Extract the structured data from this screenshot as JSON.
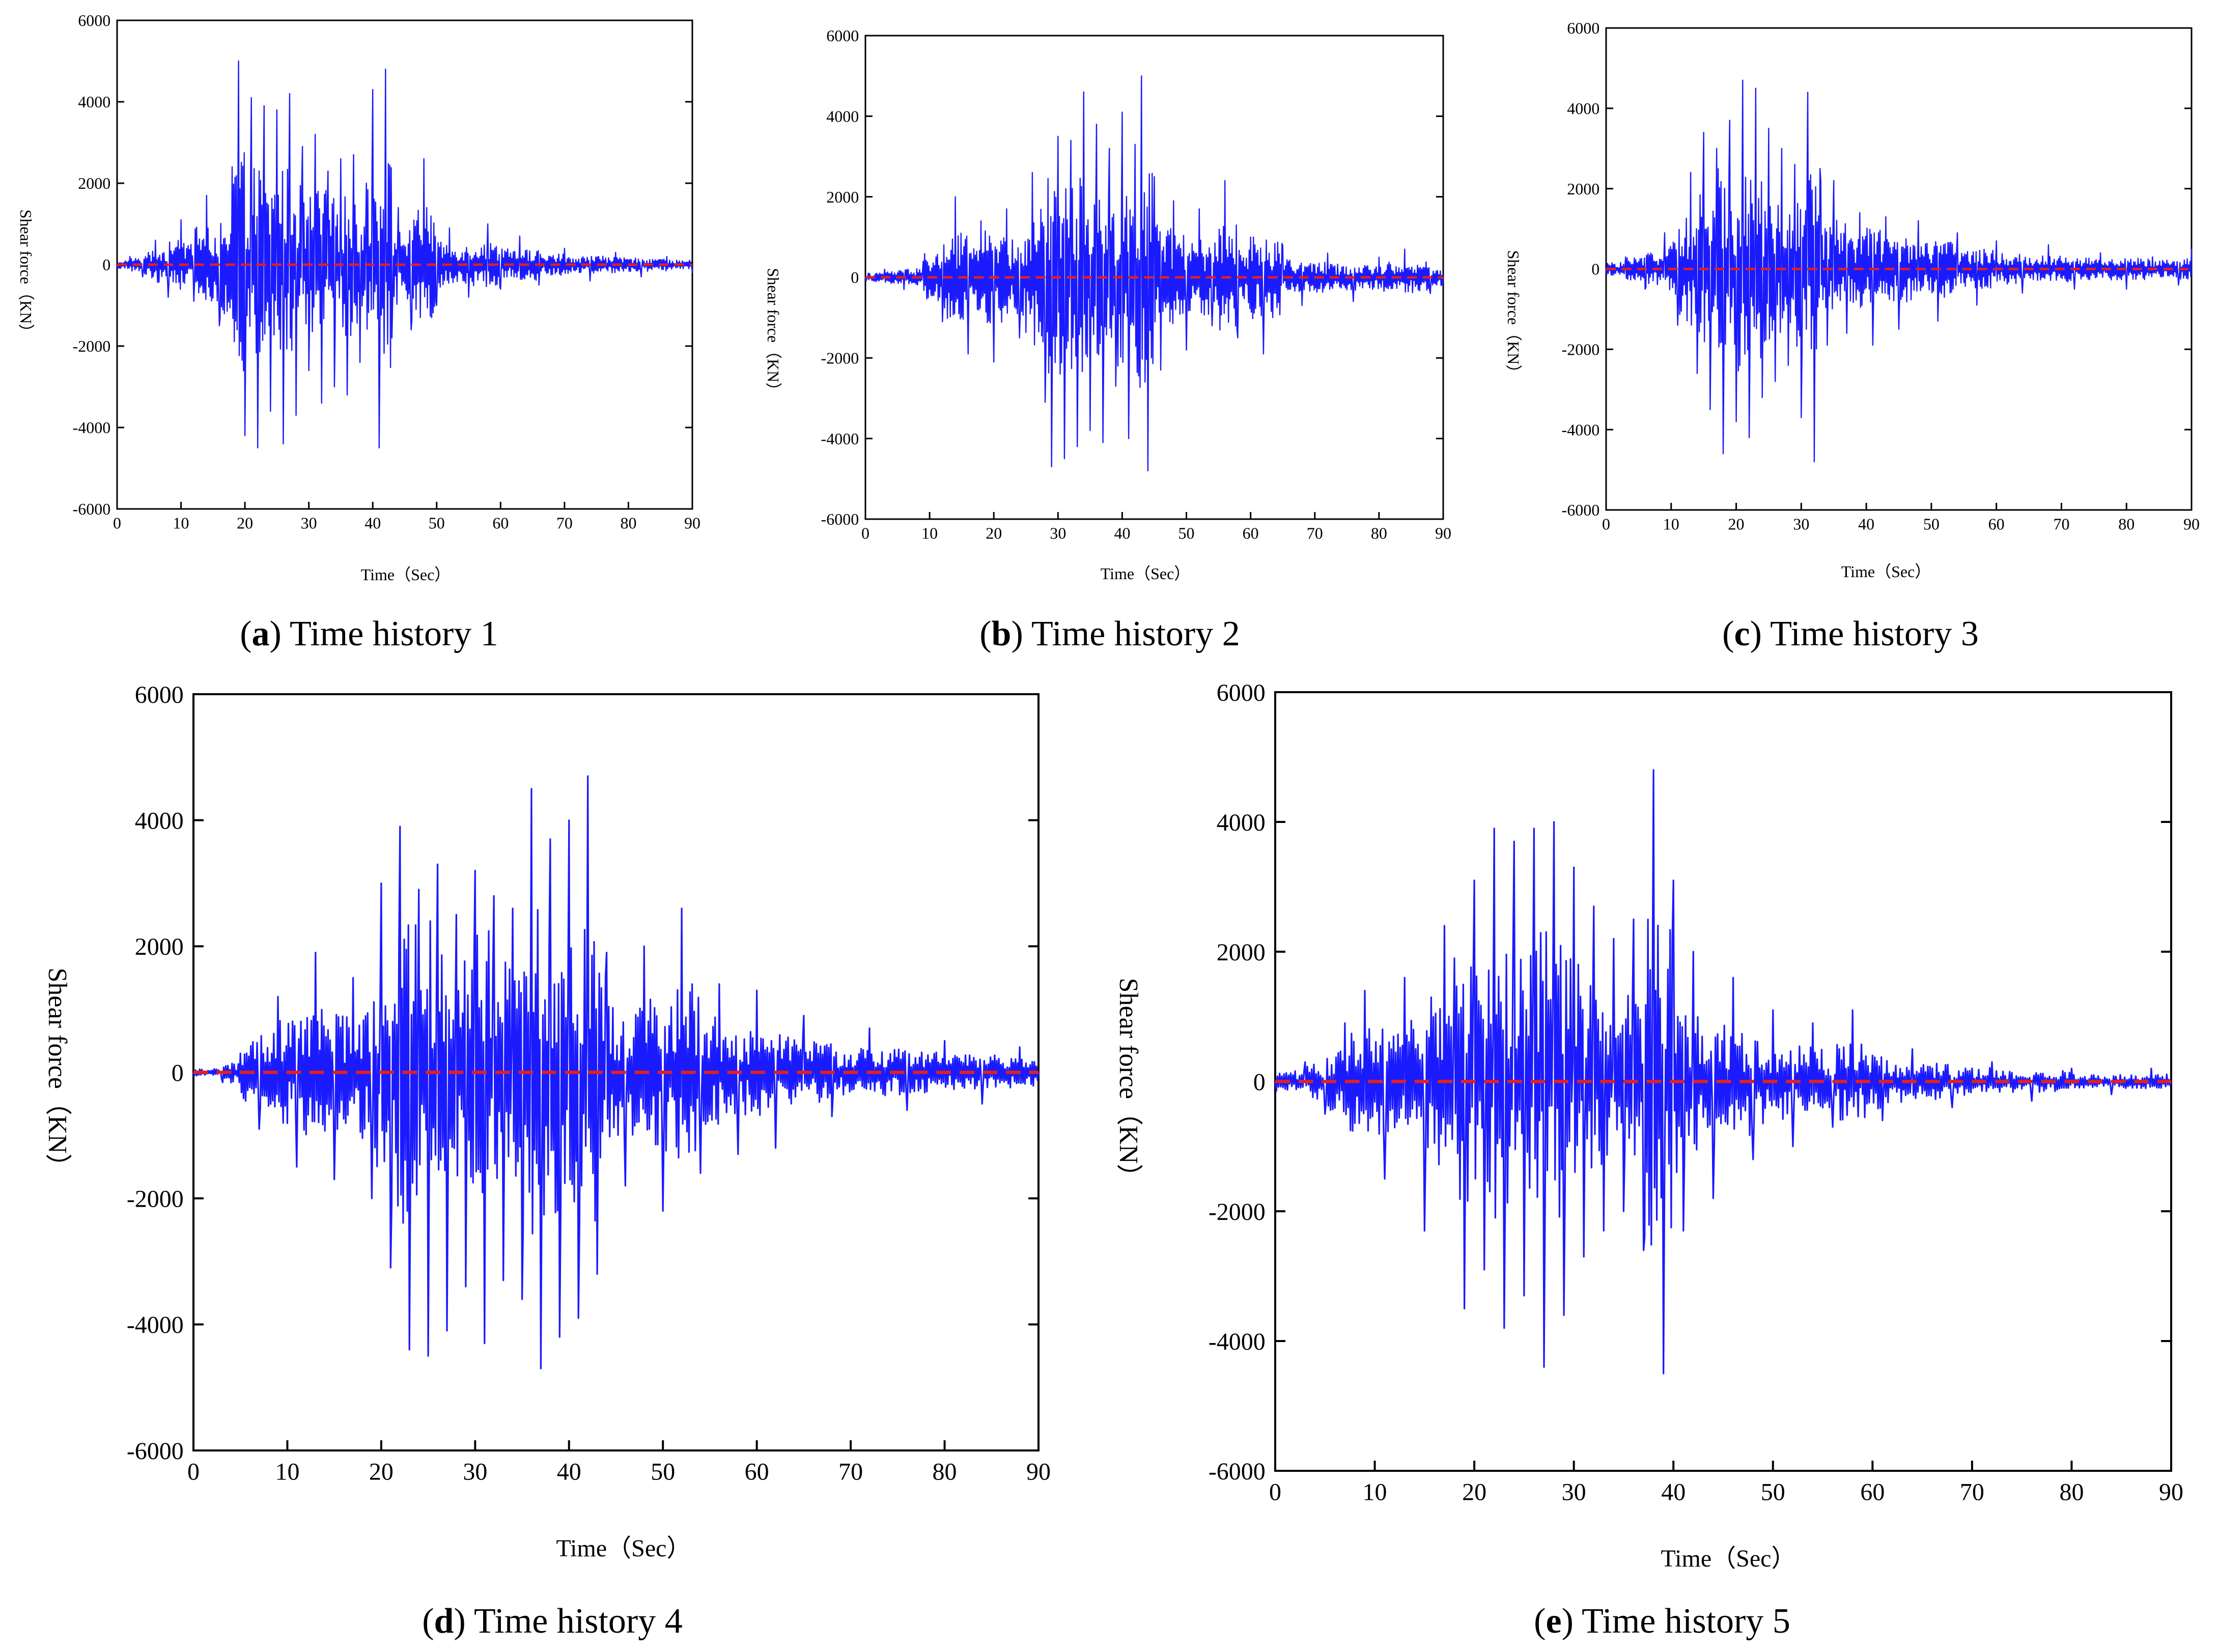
{
  "figure": {
    "panels": [
      {
        "id": "a",
        "caption_letter": "a",
        "caption_text": ") Time history 1"
      },
      {
        "id": "b",
        "caption_letter": "b",
        "caption_text": ") Time history 2"
      },
      {
        "id": "c",
        "caption_letter": "c",
        "caption_text": ") Time history 3"
      },
      {
        "id": "d",
        "caption_letter": "d",
        "caption_text": ") Time history 4"
      },
      {
        "id": "e",
        "caption_letter": "e",
        "caption_text": ") Time history 5"
      }
    ]
  },
  "colors": {
    "signal": "#1a1aff",
    "zero_line": "#e02020",
    "axis": "#000000"
  },
  "chart_data": [
    {
      "type": "line",
      "title": "(a) Time history 1",
      "xlabel": "Time（Sec）",
      "ylabel": "Shear force（KN）",
      "xlim": [
        0,
        90
      ],
      "ylim": [
        -6000,
        6000
      ],
      "xticks": [
        0,
        10,
        20,
        30,
        40,
        50,
        60,
        70,
        80,
        90
      ],
      "yticks": [
        -6000,
        -4000,
        -2000,
        0,
        2000,
        4000,
        6000
      ],
      "series": [
        {
          "name": "Shear force",
          "style": "solid",
          "x": [
            0,
            2,
            4,
            6,
            8,
            10,
            12,
            14,
            16,
            18,
            19,
            20,
            21,
            22,
            23,
            24,
            25,
            26,
            27,
            28,
            29,
            30,
            31,
            32,
            33,
            34,
            35,
            36,
            37,
            38,
            39,
            40,
            41,
            42,
            43,
            44,
            46,
            48,
            50,
            52,
            55,
            58,
            60,
            63,
            66,
            70,
            74,
            78,
            82,
            86,
            90
          ],
          "y": [
            0,
            200,
            -300,
            600,
            -800,
            1100,
            -900,
            1700,
            -1500,
            2400,
            5000,
            -4200,
            4100,
            -4500,
            3900,
            -3600,
            3800,
            -4400,
            4200,
            -3700,
            2900,
            -2600,
            3200,
            -3400,
            2300,
            -3000,
            2600,
            -3200,
            2700,
            -2400,
            2000,
            4300,
            -4500,
            4800,
            -1800,
            1400,
            -1600,
            2600,
            -1000,
            900,
            -800,
            1000,
            -600,
            700,
            -500,
            400,
            -400,
            300,
            -300,
            200,
            -200
          ]
        },
        {
          "name": "Zero line",
          "style": "dashed",
          "x": [
            0,
            90
          ],
          "y": [
            0,
            0
          ]
        }
      ]
    },
    {
      "type": "line",
      "title": "(b) Time history 2",
      "xlabel": "Time（Sec）",
      "ylabel": "Shear force（KN）",
      "xlim": [
        0,
        90
      ],
      "ylim": [
        -6000,
        6000
      ],
      "xticks": [
        0,
        10,
        20,
        30,
        40,
        50,
        60,
        70,
        80,
        90
      ],
      "yticks": [
        -6000,
        -4000,
        -2000,
        0,
        2000,
        4000,
        6000
      ],
      "series": [
        {
          "name": "Shear force",
          "style": "solid",
          "x": [
            0,
            3,
            6,
            9,
            12,
            14,
            16,
            18,
            20,
            22,
            24,
            26,
            28,
            29,
            30,
            31,
            32,
            33,
            34,
            35,
            36,
            37,
            38,
            39,
            40,
            41,
            42,
            43,
            44,
            45,
            46,
            48,
            50,
            52,
            54,
            56,
            58,
            60,
            62,
            65,
            68,
            72,
            76,
            80,
            84,
            88,
            90
          ],
          "y": [
            0,
            200,
            -300,
            400,
            -1100,
            2000,
            -1900,
            1400,
            -2100,
            1700,
            -1500,
            2600,
            -3100,
            -4700,
            3500,
            -4500,
            3400,
            -4200,
            4600,
            -3800,
            3800,
            -4100,
            3200,
            -2700,
            4100,
            -4000,
            3300,
            5000,
            -4800,
            2500,
            -2300,
            1900,
            -1800,
            1700,
            -1200,
            2400,
            -1500,
            1000,
            -1900,
            800,
            -700,
            600,
            -600,
            500,
            700,
            -400,
            0
          ]
        },
        {
          "name": "Zero line",
          "style": "dashed",
          "x": [
            0,
            90
          ],
          "y": [
            0,
            0
          ]
        }
      ]
    },
    {
      "type": "line",
      "title": "(c) Time history 3",
      "xlabel": "Time（Sec）",
      "ylabel": "Shear force（KN）",
      "xlim": [
        0,
        90
      ],
      "ylim": [
        -6000,
        6000
      ],
      "xticks": [
        0,
        10,
        20,
        30,
        40,
        50,
        60,
        70,
        80,
        90
      ],
      "yticks": [
        -6000,
        -4000,
        -2000,
        0,
        2000,
        4000,
        6000
      ],
      "series": [
        {
          "name": "Shear force",
          "style": "solid",
          "x": [
            0,
            3,
            6,
            9,
            11,
            13,
            14,
            15,
            16,
            17,
            18,
            19,
            20,
            21,
            22,
            23,
            24,
            25,
            26,
            27,
            28,
            29,
            30,
            31,
            32,
            33,
            34,
            35,
            37,
            39,
            41,
            43,
            45,
            48,
            51,
            54,
            57,
            60,
            64,
            68,
            72,
            76,
            80,
            84,
            88,
            90
          ],
          "y": [
            0,
            300,
            -500,
            900,
            -1400,
            2400,
            -2600,
            3400,
            -3500,
            3000,
            -4600,
            3700,
            -3800,
            4700,
            -4200,
            4500,
            -3200,
            3500,
            -2800,
            3000,
            -2400,
            2600,
            -3700,
            4400,
            -4800,
            2200,
            -1900,
            2200,
            -1600,
            1400,
            -1900,
            1300,
            -1500,
            1200,
            -1300,
            900,
            -900,
            700,
            -600,
            600,
            -500,
            400,
            -500,
            300,
            -400,
            500
          ]
        },
        {
          "name": "Zero line",
          "style": "dashed",
          "x": [
            0,
            90
          ],
          "y": [
            0,
            0
          ]
        }
      ]
    },
    {
      "type": "line",
      "title": "(d) Time history 4",
      "xlabel": "Time（Sec）",
      "ylabel": "Shear force（KN）",
      "xlim": [
        0,
        90
      ],
      "ylim": [
        -6000,
        6000
      ],
      "xticks": [
        0,
        10,
        20,
        30,
        40,
        50,
        60,
        70,
        80,
        90
      ],
      "yticks": [
        -6000,
        -4000,
        -2000,
        0,
        2000,
        4000,
        6000
      ],
      "series": [
        {
          "name": "Shear force",
          "style": "solid",
          "x": [
            0,
            3,
            5,
            7,
            9,
            11,
            13,
            15,
            17,
            19,
            20,
            21,
            22,
            23,
            24,
            25,
            26,
            27,
            28,
            29,
            30,
            31,
            32,
            33,
            34,
            35,
            36,
            37,
            38,
            39,
            40,
            41,
            42,
            43,
            44,
            46,
            48,
            50,
            52,
            54,
            56,
            58,
            60,
            62,
            65,
            68,
            72,
            76,
            80,
            84,
            88,
            90
          ],
          "y": [
            0,
            -100,
            300,
            -900,
            1200,
            -1500,
            1900,
            -1700,
            1500,
            -2000,
            3000,
            -3100,
            3900,
            -4400,
            2900,
            -4500,
            3300,
            -4100,
            2500,
            -3400,
            3200,
            -4300,
            2800,
            -3300,
            2600,
            -3600,
            4500,
            -4700,
            3700,
            -4200,
            4000,
            -3900,
            4700,
            -3200,
            1900,
            -1800,
            2000,
            -2200,
            2600,
            -1600,
            1400,
            -1300,
            1300,
            -1200,
            900,
            -700,
            700,
            -600,
            500,
            -500,
            400,
            0
          ]
        },
        {
          "name": "Zero line",
          "style": "dashed",
          "x": [
            0,
            90
          ],
          "y": [
            0,
            0
          ]
        }
      ]
    },
    {
      "type": "line",
      "title": "(e) Time history 5",
      "xlabel": "Time（Sec）",
      "ylabel": "Shear force（KN）",
      "xlim": [
        0,
        90
      ],
      "ylim": [
        -6000,
        6000
      ],
      "xticks": [
        0,
        10,
        20,
        30,
        40,
        50,
        60,
        70,
        80,
        90
      ],
      "yticks": [
        -6000,
        -4000,
        -2000,
        0,
        2000,
        4000,
        6000
      ],
      "series": [
        {
          "name": "Shear force",
          "style": "solid",
          "x": [
            0,
            3,
            5,
            7,
            9,
            11,
            13,
            15,
            17,
            18,
            19,
            20,
            21,
            22,
            23,
            24,
            25,
            26,
            27,
            28,
            29,
            30,
            31,
            32,
            33,
            34,
            35,
            36,
            37,
            38,
            39,
            40,
            41,
            42,
            44,
            46,
            48,
            50,
            52,
            54,
            56,
            58,
            61,
            64,
            68,
            72,
            76,
            80,
            84,
            88,
            90
          ],
          "y": [
            0,
            300,
            -500,
            900,
            1400,
            -1500,
            1600,
            -2300,
            2400,
            1900,
            -3500,
            3100,
            -2900,
            3900,
            -3800,
            3700,
            -3300,
            3900,
            -4400,
            4000,
            -3600,
            3300,
            -2700,
            2700,
            -2300,
            2200,
            -2000,
            2500,
            -2600,
            4800,
            -4500,
            3100,
            -2300,
            2000,
            -1800,
            1600,
            -1200,
            1100,
            -1000,
            900,
            -700,
            1100,
            -600,
            500,
            -400,
            300,
            -300,
            200,
            -200,
            200,
            0
          ]
        },
        {
          "name": "Zero line",
          "style": "dashed",
          "x": [
            0,
            90
          ],
          "y": [
            0,
            0
          ]
        }
      ]
    }
  ]
}
